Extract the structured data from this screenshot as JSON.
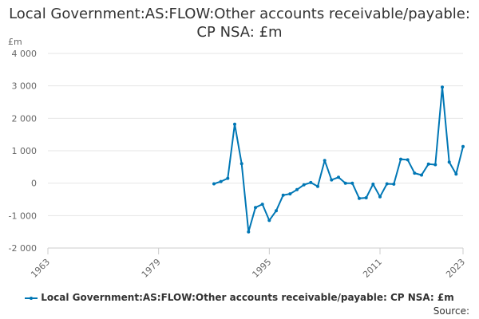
{
  "chart_data": {
    "type": "line",
    "title": "Local Government:AS:FLOW:Other accounts receivable/payable: CP NSA: £m",
    "ylabel": "£m",
    "xlabel": "",
    "ylim": [
      -2000,
      4000
    ],
    "xlim": [
      1963,
      2023
    ],
    "yticks": [
      -2000,
      -1000,
      0,
      1000,
      2000,
      3000,
      4000
    ],
    "ytick_labels": [
      "-2 000",
      "-1 000",
      "0",
      "1 000",
      "2 000",
      "3 000",
      "4 000"
    ],
    "xticks": [
      1963,
      1979,
      1995,
      2011,
      2023
    ],
    "xtick_labels": [
      "1963",
      "1979",
      "1995",
      "2011",
      "2023"
    ],
    "grid": "horizontal",
    "legend_position": "bottom",
    "color": "#0077b5",
    "series": [
      {
        "name": "Local Government:AS:FLOW:Other accounts receivable/payable: CP NSA: £m",
        "x": [
          1987,
          1988,
          1989,
          1990,
          1991,
          1992,
          1993,
          1994,
          1995,
          1996,
          1997,
          1998,
          1999,
          2000,
          2001,
          2002,
          2003,
          2004,
          2005,
          2006,
          2007,
          2008,
          2009,
          2010,
          2011,
          2012,
          2013,
          2014,
          2015,
          2016,
          2017,
          2018,
          2019,
          2020,
          2021,
          2022,
          2023
        ],
        "values": [
          -20,
          50,
          150,
          1820,
          600,
          -1500,
          -750,
          -650,
          -1150,
          -850,
          -370,
          -330,
          -200,
          -50,
          20,
          -100,
          700,
          100,
          180,
          0,
          0,
          -470,
          -450,
          -30,
          -420,
          -20,
          -30,
          740,
          720,
          310,
          250,
          590,
          570,
          2960,
          650,
          280,
          1130
        ]
      }
    ]
  },
  "legend": {
    "label": "Local Government:AS:FLOW:Other accounts receivable/payable: CP NSA: £m"
  },
  "source": {
    "label": "Source:"
  }
}
